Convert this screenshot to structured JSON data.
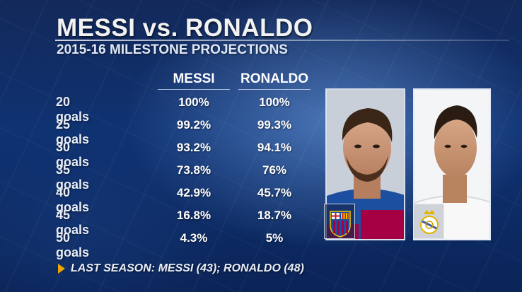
{
  "title": "MESSI vs. RONALDO",
  "subtitle": "2015-16 MILESTONE PROJECTIONS",
  "footer": "LAST SEASON: MESSI (43); RONALDO (48)",
  "colors": {
    "background": "#0f3272",
    "text": "#ffffff",
    "footer_arrow": "#f0a500",
    "barcelona_blue": "#1d4fa0",
    "barcelona_red": "#a50044"
  },
  "icons": {
    "messi_badge": "fc-barcelona-crest-icon",
    "ronaldo_badge": "real-madrid-crest-icon",
    "footer_marker": "triangle-right-icon"
  },
  "chart_data": {
    "type": "table",
    "title": "MESSI vs. RONALDO",
    "subtitle": "2015-16 MILESTONE PROJECTIONS",
    "columns": [
      "MESSI",
      "RONALDO"
    ],
    "rows": [
      {
        "label": "20 goals",
        "values": [
          "100%",
          "100%"
        ]
      },
      {
        "label": "25 goals",
        "values": [
          "99.2%",
          "99.3%"
        ]
      },
      {
        "label": "30 goals",
        "values": [
          "93.2%",
          "94.1%"
        ]
      },
      {
        "label": "35 goals",
        "values": [
          "73.8%",
          "76%"
        ]
      },
      {
        "label": "40 goals",
        "values": [
          "42.9%",
          "45.7%"
        ]
      },
      {
        "label": "45 goals",
        "values": [
          "16.8%",
          "18.7%"
        ]
      },
      {
        "label": "50 goals",
        "values": [
          "4.3%",
          "5%"
        ]
      }
    ],
    "series": [
      {
        "name": "MESSI",
        "values": [
          100,
          99.2,
          93.2,
          73.8,
          42.9,
          16.8,
          4.3
        ]
      },
      {
        "name": "RONALDO",
        "values": [
          100,
          99.3,
          94.1,
          76,
          45.7,
          18.7,
          5
        ]
      }
    ],
    "categories": [
      "20 goals",
      "25 goals",
      "30 goals",
      "35 goals",
      "40 goals",
      "45 goals",
      "50 goals"
    ],
    "annotations": [
      "LAST SEASON: MESSI (43); RONALDO (48)"
    ]
  }
}
